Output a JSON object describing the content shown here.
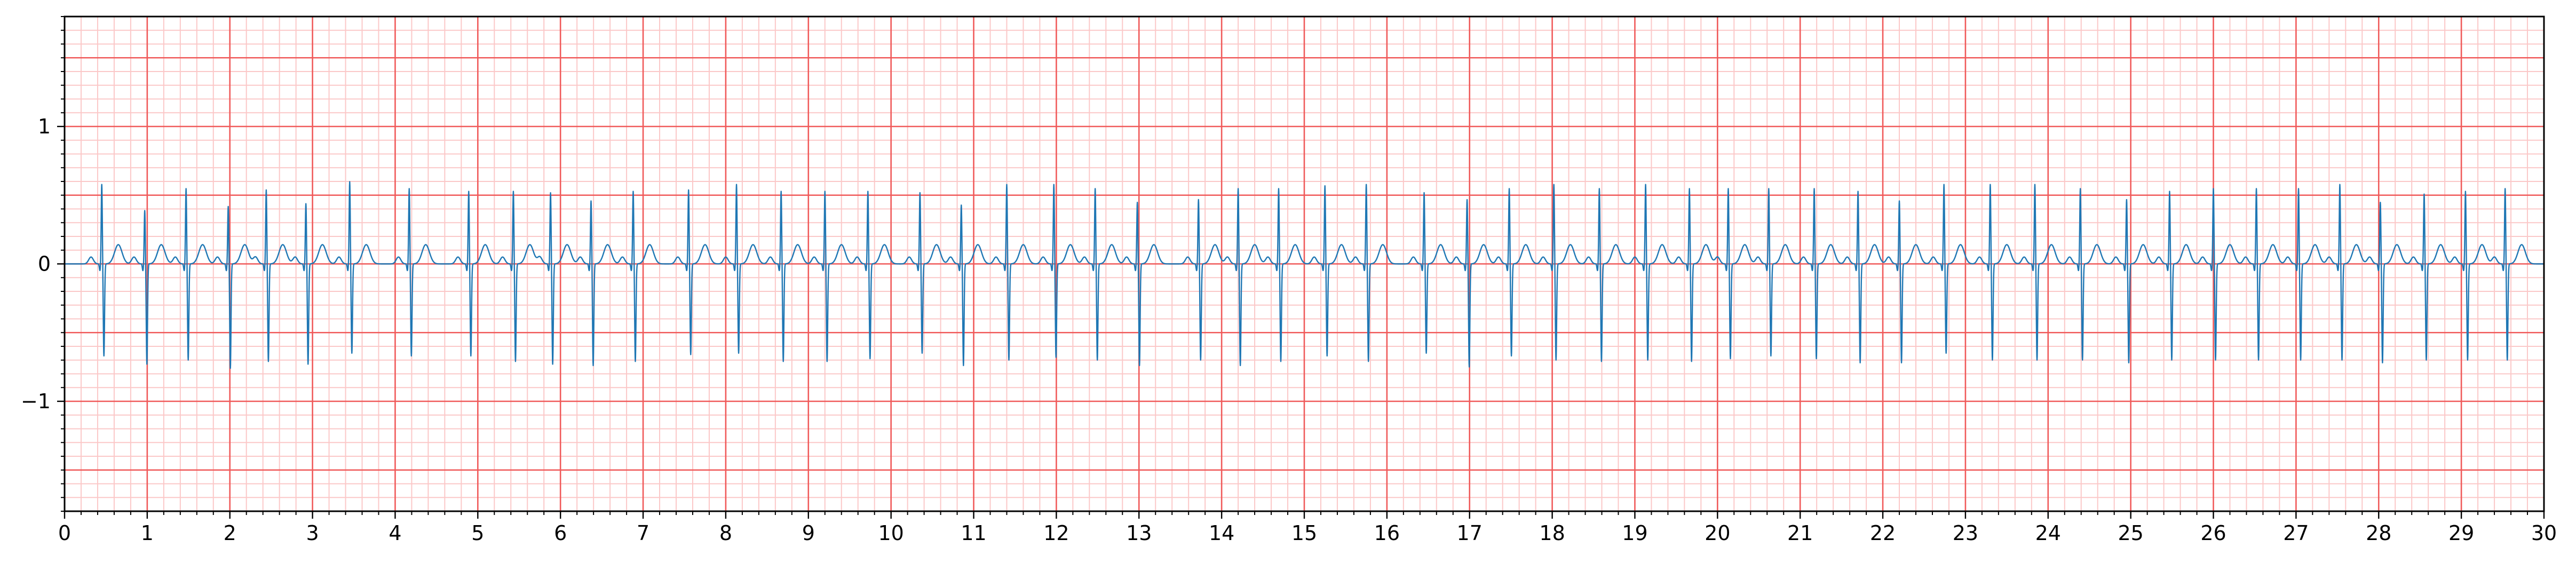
{
  "chart_data": {
    "type": "line",
    "title": "",
    "xlabel": "",
    "ylabel": "",
    "xlim": [
      0,
      30
    ],
    "ylim": [
      -1.8,
      1.8
    ],
    "grid": {
      "on": true,
      "major_x_step": 1,
      "minor_x_step": 0.2,
      "major_y_step": 0.5,
      "minor_y_step": 0.1,
      "major_color": "#f05a5a",
      "minor_color": "#fbc8c8"
    },
    "x_ticks": [
      0,
      1,
      2,
      3,
      4,
      5,
      6,
      7,
      8,
      9,
      10,
      11,
      12,
      13,
      14,
      15,
      16,
      17,
      18,
      19,
      20,
      21,
      22,
      23,
      24,
      25,
      26,
      27,
      28,
      29,
      30
    ],
    "x_tick_labels": [
      "0",
      "1",
      "2",
      "3",
      "4",
      "5",
      "6",
      "7",
      "8",
      "9",
      "10",
      "11",
      "12",
      "13",
      "14",
      "15",
      "16",
      "17",
      "18",
      "19",
      "20",
      "21",
      "22",
      "23",
      "24",
      "25",
      "26",
      "27",
      "28",
      "29",
      "30"
    ],
    "y_ticks": [
      -1,
      0,
      1
    ],
    "y_tick_labels": [
      "−1",
      "0",
      "1"
    ],
    "series": [
      {
        "color": "#1f77b4",
        "beat_waveform": {
          "r_peak": 0.58,
          "s_trough": -0.68,
          "q_dip": -0.05,
          "t_wave": 0.14,
          "p_wave": 0.05
        },
        "beats": [
          [
            0.45,
            0.58,
            -0.67
          ],
          [
            0.97,
            0.39,
            -0.73
          ],
          [
            1.47,
            0.55,
            -0.7
          ],
          [
            1.98,
            0.42,
            -0.76
          ],
          [
            2.44,
            0.54,
            -0.71
          ],
          [
            2.92,
            0.44,
            -0.73
          ],
          [
            3.45,
            0.6,
            -0.65
          ],
          [
            4.17,
            0.55,
            -0.67
          ],
          [
            4.89,
            0.53,
            -0.67
          ],
          [
            5.43,
            0.53,
            -0.71
          ],
          [
            5.88,
            0.52,
            -0.73
          ],
          [
            6.37,
            0.46,
            -0.74
          ],
          [
            6.88,
            0.53,
            -0.71
          ],
          [
            7.55,
            0.54,
            -0.66
          ],
          [
            8.13,
            0.58,
            -0.65
          ],
          [
            8.67,
            0.53,
            -0.71
          ],
          [
            9.2,
            0.53,
            -0.71
          ],
          [
            9.72,
            0.53,
            -0.69
          ],
          [
            10.35,
            0.52,
            -0.65
          ],
          [
            10.85,
            0.43,
            -0.74
          ],
          [
            11.4,
            0.58,
            -0.7
          ],
          [
            11.97,
            0.58,
            -0.68
          ],
          [
            12.47,
            0.55,
            -0.7
          ],
          [
            12.98,
            0.45,
            -0.74
          ],
          [
            13.72,
            0.47,
            -0.7
          ],
          [
            14.2,
            0.55,
            -0.74
          ],
          [
            14.69,
            0.55,
            -0.71
          ],
          [
            15.25,
            0.57,
            -0.67
          ],
          [
            15.75,
            0.58,
            -0.71
          ],
          [
            16.45,
            0.52,
            -0.65
          ],
          [
            16.97,
            0.47,
            -0.75
          ],
          [
            17.48,
            0.55,
            -0.67
          ],
          [
            18.02,
            0.58,
            -0.7
          ],
          [
            18.57,
            0.55,
            -0.71
          ],
          [
            19.13,
            0.58,
            -0.7
          ],
          [
            19.66,
            0.55,
            -0.71
          ],
          [
            20.13,
            0.55,
            -0.69
          ],
          [
            20.62,
            0.55,
            -0.67
          ],
          [
            21.17,
            0.55,
            -0.69
          ],
          [
            21.7,
            0.53,
            -0.72
          ],
          [
            22.2,
            0.46,
            -0.72
          ],
          [
            22.74,
            0.58,
            -0.65
          ],
          [
            23.3,
            0.58,
            -0.7
          ],
          [
            23.84,
            0.58,
            -0.7
          ],
          [
            24.39,
            0.55,
            -0.7
          ],
          [
            24.95,
            0.47,
            -0.72
          ],
          [
            25.47,
            0.53,
            -0.7
          ],
          [
            26.0,
            0.55,
            -0.7
          ],
          [
            26.52,
            0.55,
            -0.7
          ],
          [
            27.03,
            0.55,
            -0.7
          ],
          [
            27.53,
            0.58,
            -0.7
          ],
          [
            28.02,
            0.45,
            -0.72
          ],
          [
            28.55,
            0.51,
            -0.7
          ],
          [
            29.05,
            0.53,
            -0.7
          ],
          [
            29.53,
            0.55,
            -0.7
          ]
        ]
      }
    ]
  }
}
